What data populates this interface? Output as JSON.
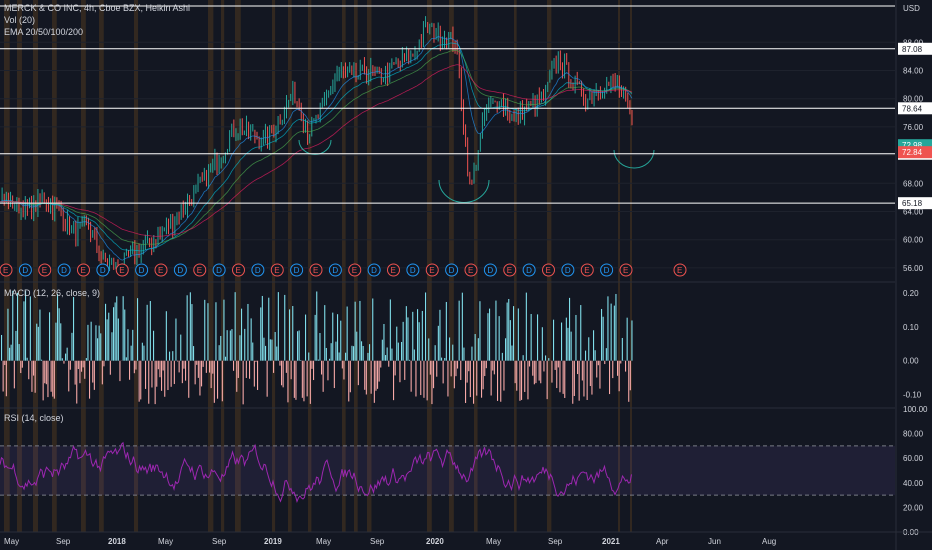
{
  "header": {
    "symbol_line": "MERCK & CO INC, 4h, Cboe BZX, Heikin Ashi",
    "vol_line": "Vol (20)",
    "ema_line": "EMA 20/50/100/200",
    "currency": "USD"
  },
  "macd_label": "MACD (12, 26, close, 9)",
  "rsi_label": "RSI (14, close)",
  "colors": {
    "background": "#131722",
    "up": "#26a69a",
    "down": "#ef5350",
    "rsi": "#9c27b0",
    "highlight": "#c07a1c",
    "level_line": "#ffffff"
  },
  "chart_data": [
    {
      "type": "line",
      "name": "price",
      "x": [
        "2017-07",
        "2017-08",
        "2017-09",
        "2017-10",
        "2017-11",
        "2017-12",
        "2018-01",
        "2018-02",
        "2018-03",
        "2018-04",
        "2018-05",
        "2018-06",
        "2018-07",
        "2018-08",
        "2018-09",
        "2018-10",
        "2018-11",
        "2018-12",
        "2019-01",
        "2019-02",
        "2019-03",
        "2019-04",
        "2019-05",
        "2019-06",
        "2019-07",
        "2019-08",
        "2019-09",
        "2019-10",
        "2019-11",
        "2019-12",
        "2020-01",
        "2020-02",
        "2020-03",
        "2020-04",
        "2020-05",
        "2020-06",
        "2020-07",
        "2020-08",
        "2020-09",
        "2020-10",
        "2020-11",
        "2020-12",
        "2021-01",
        "2021-02"
      ],
      "values": [
        66,
        65,
        64,
        66,
        64,
        61,
        62,
        57,
        56,
        58,
        59,
        61,
        63,
        66,
        69,
        72,
        76,
        75,
        74,
        77,
        81,
        75,
        79,
        84,
        83,
        84,
        83,
        85,
        86,
        90,
        89,
        88,
        67,
        78,
        80,
        77,
        79,
        80,
        86,
        82,
        80,
        82,
        82,
        77
      ],
      "ylim": [
        54,
        94
      ],
      "yticks": [
        56.0,
        60.0,
        64.0,
        68.0,
        72.0,
        76.0,
        80.0,
        84.0,
        88.0
      ],
      "price_levels": [
        87.08,
        78.64,
        72.19,
        65.18
      ],
      "price_badges": [
        {
          "value": 72.98,
          "label": "72.98"
        },
        {
          "value": 72.84,
          "label": "72.84"
        }
      ],
      "level_labels": [
        "87.08",
        "78.64",
        "72.19",
        "65.18"
      ],
      "ytick_labels": [
        "56.00",
        "60.00",
        "64.00",
        "68.00",
        "72.00",
        "76.00",
        "80.00",
        "84.00",
        "88.00"
      ],
      "earnings_markers": [
        "E",
        "D",
        "E",
        "D",
        "E",
        "D",
        "E",
        "D",
        "E",
        "D",
        "E",
        "D",
        "E",
        "D",
        "E",
        "D",
        "E",
        "D",
        "E",
        "D",
        "E",
        "D",
        "E",
        "D",
        "E",
        "D",
        "E",
        "D",
        "E",
        "D",
        "E",
        "D",
        "E"
      ],
      "earnings_future": "E"
    },
    {
      "type": "bar",
      "name": "MACD histogram",
      "ylim": [
        -0.14,
        0.23
      ],
      "yticks": [
        -0.1,
        0.0,
        0.1,
        0.2
      ],
      "ytick_labels": [
        "-0.10",
        "0.00",
        "0.10",
        "0.20"
      ]
    },
    {
      "type": "line",
      "name": "RSI",
      "ylim": [
        0,
        100
      ],
      "yticks": [
        0,
        20,
        40,
        60,
        80,
        100
      ],
      "ytick_labels": [
        "0.00",
        "20.00",
        "40.00",
        "60.00",
        "80.00",
        "100.00"
      ],
      "bands": [
        30,
        70
      ]
    }
  ],
  "x_axis": {
    "labels": [
      "May",
      "Sep",
      "2018",
      "May",
      "Sep",
      "2019",
      "May",
      "Sep",
      "2020",
      "May",
      "Sep",
      "2021",
      "Apr",
      "Jun",
      "Aug"
    ]
  }
}
